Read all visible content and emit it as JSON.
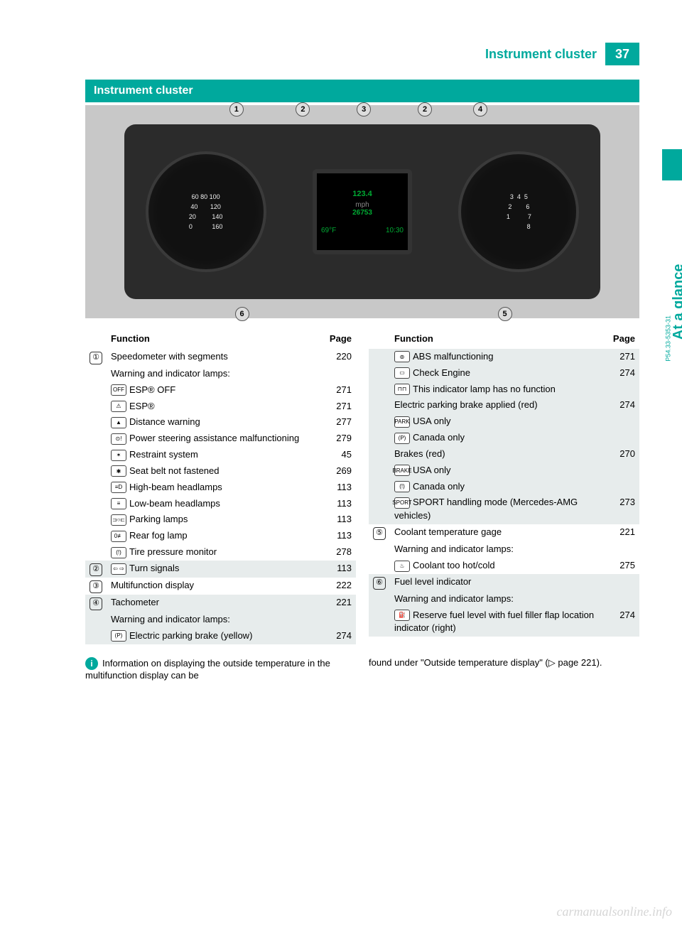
{
  "header": {
    "title": "Instrument cluster",
    "page_number": "37"
  },
  "side_tab": "At a glance",
  "section_banner": "Instrument cluster",
  "image_ref": "P54.33-5353-31",
  "cluster": {
    "center_main": "123.4",
    "center_unit": "mph",
    "center_odo": "26753",
    "temp": "69°F",
    "time": "10:30",
    "callouts": [
      "1",
      "2",
      "3",
      "2",
      "4",
      "5",
      "6"
    ]
  },
  "tables": {
    "header_function": "Function",
    "header_page": "Page",
    "left": [
      {
        "shaded": false,
        "marker": "①",
        "rows": [
          {
            "icon": "",
            "text": "Speedometer with segments",
            "page": "220"
          },
          {
            "icon": "",
            "text": "Warning and indicator lamps:",
            "page": ""
          },
          {
            "icon": "OFF",
            "text": "ESP® OFF",
            "page": "271"
          },
          {
            "icon": "⚠",
            "text": "ESP®",
            "page": "271"
          },
          {
            "icon": "▲",
            "text": "Distance warning",
            "page": "277"
          },
          {
            "icon": "⊙!",
            "text": "Power steering assistance malfunctioning",
            "page": "279"
          },
          {
            "icon": "✶",
            "text": "Restraint system",
            "page": "45"
          },
          {
            "icon": "✱",
            "text": "Seat belt not fastened",
            "page": "269"
          },
          {
            "icon": "≡D",
            "text": "High-beam headlamps",
            "page": "113"
          },
          {
            "icon": "≡",
            "text": "Low-beam headlamps",
            "page": "113"
          },
          {
            "icon": "⊐○⊏",
            "text": "Parking lamps",
            "page": "113"
          },
          {
            "icon": "0≢",
            "text": "Rear fog lamp",
            "page": "113"
          },
          {
            "icon": "(!)",
            "text": "Tire pressure monitor",
            "page": "278"
          }
        ]
      },
      {
        "shaded": true,
        "marker": "②",
        "rows": [
          {
            "icon": "⇦ ⇨",
            "text": "Turn signals",
            "page": "113"
          }
        ]
      },
      {
        "shaded": false,
        "marker": "③",
        "rows": [
          {
            "icon": "",
            "text": "Multifunction display",
            "page": "222"
          }
        ]
      },
      {
        "shaded": true,
        "marker": "④",
        "rows": [
          {
            "icon": "",
            "text": "Tachometer",
            "page": "221"
          },
          {
            "icon": "",
            "text": "Warning and indicator lamps:",
            "page": ""
          },
          {
            "icon": "(P)",
            "text": "Electric parking brake (yellow)",
            "page": "274"
          }
        ]
      }
    ],
    "right": [
      {
        "shaded": true,
        "marker": "",
        "rows": [
          {
            "icon": "⊚",
            "text": "ABS malfunctioning",
            "page": "271"
          },
          {
            "icon": "▭",
            "text": "Check Engine",
            "page": "274"
          },
          {
            "icon": "⊓⊓",
            "text": "This indicator lamp has no function",
            "page": ""
          },
          {
            "icon": "",
            "text": "Electric parking brake applied (red)",
            "page": "274"
          },
          {
            "icon": "PARK",
            "text": "USA only",
            "page": ""
          },
          {
            "icon": "(P)",
            "text": "Canada only",
            "page": ""
          },
          {
            "icon": "",
            "text": "Brakes (red)",
            "page": "270"
          },
          {
            "icon": "BRAKE",
            "text": "USA only",
            "page": ""
          },
          {
            "icon": "(!)",
            "text": "Canada only",
            "page": ""
          },
          {
            "icon": "SPORT",
            "text": "SPORT handling mode (Mercedes-AMG vehicles)",
            "page": "273"
          }
        ]
      },
      {
        "shaded": false,
        "marker": "⑤",
        "rows": [
          {
            "icon": "",
            "text": "Coolant temperature gage",
            "page": "221"
          },
          {
            "icon": "",
            "text": "Warning and indicator lamps:",
            "page": ""
          },
          {
            "icon": "♨",
            "text": "Coolant too hot/cold",
            "page": "275"
          }
        ]
      },
      {
        "shaded": true,
        "marker": "⑥",
        "rows": [
          {
            "icon": "",
            "text": "Fuel level indicator",
            "page": ""
          },
          {
            "icon": "",
            "text": "Warning and indicator lamps:",
            "page": ""
          },
          {
            "icon": "⛽",
            "text": "Reserve fuel level with fuel filler flap location indicator (right)",
            "page": "274"
          }
        ]
      }
    ]
  },
  "footer": {
    "left": "Information on displaying the outside temperature in the multifunction display can be",
    "right": "found under \"Outside temperature display\" (▷ page 221)."
  },
  "watermark": "carmanualsonline.info",
  "colors": {
    "teal": "#00a99d",
    "shade": "#e7ecec",
    "panel": "#2b2b2b"
  }
}
